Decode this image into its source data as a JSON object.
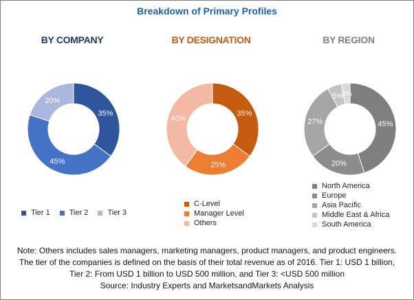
{
  "title": "Breakdown of Primary Profiles",
  "colors": {
    "title": "#1f5fa8",
    "company_heading": "#1f3864",
    "designation_heading": "#c55a11",
    "region_heading": "#7f7f7f"
  },
  "chart_data": [
    {
      "type": "pie",
      "title": "BY COMPANY",
      "categories": [
        "Tier 1",
        "Tier 2",
        "Tier 3"
      ],
      "values": [
        35,
        45,
        20
      ],
      "labels": [
        "35%",
        "45%",
        "20%"
      ],
      "colors": [
        "#2f559d",
        "#4472c4",
        "#a9b8dc"
      ],
      "legend_placement": "bottom"
    },
    {
      "type": "pie",
      "title": "BY DESIGNATION",
      "categories": [
        "C-Level",
        "Manager Level",
        "Others"
      ],
      "values": [
        35,
        25,
        40
      ],
      "labels": [
        "35%",
        "25%",
        "40%"
      ],
      "colors": [
        "#c55a11",
        "#ed7d31",
        "#f4b9a4"
      ],
      "legend_placement": "bottom"
    },
    {
      "type": "pie",
      "title": "BY REGION",
      "categories": [
        "North America",
        "Europe",
        "Asia Pacific",
        "Middle East & Africa",
        "South America"
      ],
      "values": [
        45,
        20,
        27,
        5,
        3
      ],
      "labels": [
        "45%",
        "20%",
        "27%",
        "5%",
        "3%"
      ],
      "colors": [
        "#7f7f7f",
        "#8c8c8c",
        "#a5a5a5",
        "#c3c3c3",
        "#d9d9d9"
      ],
      "legend_placement": "bottom"
    }
  ],
  "note": {
    "line1": "Note: Others includes sales managers, marketing managers, product managers, and product engineers.",
    "line2": "The tier of the companies is defined on the basis of their total revenue as of 2016. Tier 1: USD 1 billion,",
    "line3": "Tier 2: From USD 1 billion to USD 500 million, and Tier 3: <USD 500 million",
    "source": "Source: Industry Experts and MarketsandMarkets Analysis"
  }
}
